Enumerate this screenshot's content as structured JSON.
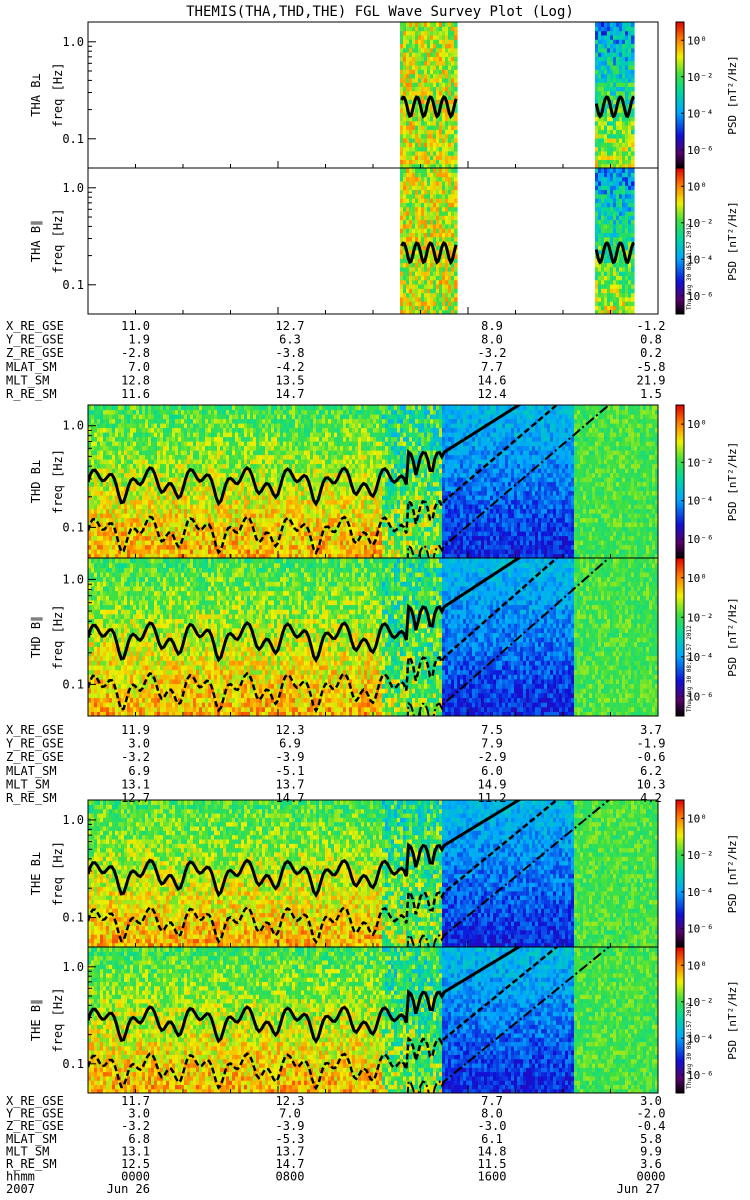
{
  "title": "THEMIS(THA,THD,THE) FGL Wave Survey Plot (Log)",
  "timestamp": "Thu Aug 30 08:41:57 2012",
  "chart_data": {
    "type": "heatmap",
    "title": "THEMIS(THA,THD,THE) FGL Wave Survey Plot (Log)",
    "x_range": [
      "2007 Jun 26 0000",
      "2007 Jun 27 0000"
    ],
    "x_ticks": [
      "0000",
      "0800",
      "1600",
      "0000"
    ],
    "date_labels": [
      "2007",
      "Jun 26",
      "Jun 27"
    ],
    "y_scale": "log",
    "y_ylim_hz": [
      0.05,
      1.6
    ],
    "y_ticks": [
      "0.1",
      "1.0"
    ],
    "colorbar": {
      "label": "PSD [nT²/Hz]",
      "scale": "log",
      "ticks": [
        "10⁰",
        "10⁻²",
        "10⁻⁴",
        "10⁻⁶"
      ],
      "range": [
        1e-07,
        10
      ]
    },
    "panels": [
      {
        "probe": "THA",
        "component": "B⊥",
        "ylabel": "freq [Hz]",
        "label": "THA B⊥",
        "data_intervals_hours": [
          [
            13.2,
            15.5
          ],
          [
            21.4,
            23.0
          ]
        ]
      },
      {
        "probe": "THA",
        "component": "B∥",
        "ylabel": "freq [Hz]",
        "label": "THA B∥",
        "data_intervals_hours": [
          [
            13.2,
            15.5
          ],
          [
            21.4,
            23.0
          ]
        ]
      },
      {
        "probe": "THD",
        "component": "B⊥",
        "ylabel": "freq [Hz]",
        "label": "THD B⊥",
        "data_intervals_hours": [
          [
            0,
            24
          ]
        ]
      },
      {
        "probe": "THD",
        "component": "B∥",
        "ylabel": "freq [Hz]",
        "label": "THD B∥",
        "data_intervals_hours": [
          [
            0,
            24
          ]
        ]
      },
      {
        "probe": "THE",
        "component": "B⊥",
        "ylabel": "freq [Hz]",
        "label": "THE B⊥",
        "data_intervals_hours": [
          [
            0,
            24
          ]
        ]
      },
      {
        "probe": "THE",
        "component": "B∥",
        "ylabel": "freq [Hz]",
        "label": "THE B∥",
        "data_intervals_hours": [
          [
            0,
            24
          ]
        ]
      }
    ],
    "ephemeris": [
      {
        "probe": "THA",
        "rows": [
          {
            "name": "X_RE_GSE",
            "values": [
              "11.0",
              "12.7",
              "8.9",
              "-1.2"
            ]
          },
          {
            "name": "Y_RE_GSE",
            "values": [
              "1.9",
              "6.3",
              "8.0",
              "0.8"
            ]
          },
          {
            "name": "Z_RE_GSE",
            "values": [
              "-2.8",
              "-3.8",
              "-3.2",
              "0.2"
            ]
          },
          {
            "name": "MLAT_SM",
            "values": [
              "7.0",
              "-4.2",
              "7.7",
              "-5.8"
            ]
          },
          {
            "name": "MLT_SM",
            "values": [
              "12.8",
              "13.5",
              "14.6",
              "21.9"
            ]
          },
          {
            "name": "R_RE_SM",
            "values": [
              "11.6",
              "14.7",
              "12.4",
              "1.5"
            ]
          }
        ]
      },
      {
        "probe": "THD",
        "rows": [
          {
            "name": "X_RE_GSE",
            "values": [
              "11.9",
              "12.3",
              "7.5",
              "3.7"
            ]
          },
          {
            "name": "Y_RE_GSE",
            "values": [
              "3.0",
              "6.9",
              "7.9",
              "-1.9"
            ]
          },
          {
            "name": "Z_RE_GSE",
            "values": [
              "-3.2",
              "-3.9",
              "-2.9",
              "-0.6"
            ]
          },
          {
            "name": "MLAT_SM",
            "values": [
              "6.9",
              "-5.1",
              "6.0",
              "6.2"
            ]
          },
          {
            "name": "MLT_SM",
            "values": [
              "13.1",
              "13.7",
              "14.9",
              "10.3"
            ]
          },
          {
            "name": "R_RE_SM",
            "values": [
              "12.7",
              "14.7",
              "11.2",
              "4.2"
            ]
          }
        ]
      },
      {
        "probe": "THE",
        "rows": [
          {
            "name": "X_RE_GSE",
            "values": [
              "11.7",
              "12.3",
              "7.7",
              "3.0"
            ]
          },
          {
            "name": "Y_RE_GSE",
            "values": [
              "3.0",
              "7.0",
              "8.0",
              "-2.0"
            ]
          },
          {
            "name": "Z_RE_GSE",
            "values": [
              "-3.2",
              "-3.9",
              "-3.0",
              "-0.4"
            ]
          },
          {
            "name": "MLAT_SM",
            "values": [
              "6.8",
              "-5.3",
              "6.1",
              "5.8"
            ]
          },
          {
            "name": "MLT_SM",
            "values": [
              "13.1",
              "13.7",
              "14.8",
              "9.9"
            ]
          },
          {
            "name": "R_RE_SM",
            "values": [
              "12.5",
              "14.7",
              "11.5",
              "3.6"
            ]
          },
          {
            "name": "hhmm",
            "values": [
              "0000",
              "0800",
              "1600",
              "0000"
            ]
          }
        ]
      }
    ]
  }
}
